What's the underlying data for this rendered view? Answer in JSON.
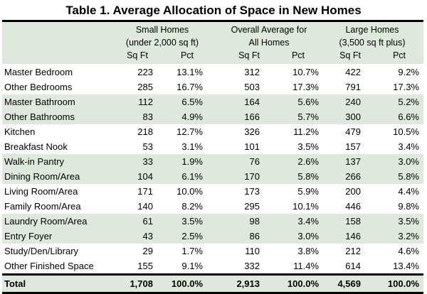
{
  "title": "Table 1.  Average Allocation of  Space in New Homes",
  "groups": [
    {
      "line1": "Small Homes",
      "line2": "(under 2,000 sq ft)"
    },
    {
      "line1": "Overall Average  for",
      "line2": "All Homes"
    },
    {
      "line1": "Large Homes",
      "line2": "(3,500 sq ft plus)"
    }
  ],
  "subheaders": {
    "sqft": "Sq Ft",
    "pct": "Pct"
  },
  "rows": [
    {
      "label": "Master Bedroom",
      "s_sqft": "223",
      "s_pct": "13.1%",
      "o_sqft": "312",
      "o_pct": "10.7%",
      "l_sqft": "422",
      "l_pct": "9.2%"
    },
    {
      "label": "Other Bedrooms",
      "s_sqft": "285",
      "s_pct": "16.7%",
      "o_sqft": "503",
      "o_pct": "17.3%",
      "l_sqft": "791",
      "l_pct": "17.3%"
    },
    {
      "label": "Master Bathroom",
      "s_sqft": "112",
      "s_pct": "6.5%",
      "o_sqft": "164",
      "o_pct": "5.6%",
      "l_sqft": "240",
      "l_pct": "5.2%"
    },
    {
      "label": "Other Bathrooms",
      "s_sqft": "83",
      "s_pct": "4.9%",
      "o_sqft": "166",
      "o_pct": "5.7%",
      "l_sqft": "300",
      "l_pct": "6.6%"
    },
    {
      "label": "Kitchen",
      "s_sqft": "218",
      "s_pct": "12.7%",
      "o_sqft": "326",
      "o_pct": "11.2%",
      "l_sqft": "479",
      "l_pct": "10.5%"
    },
    {
      "label": "Breakfast Nook",
      "s_sqft": "53",
      "s_pct": "3.1%",
      "o_sqft": "101",
      "o_pct": "3.5%",
      "l_sqft": "157",
      "l_pct": "3.4%"
    },
    {
      "label": "Walk-in Pantry",
      "s_sqft": "33",
      "s_pct": "1.9%",
      "o_sqft": "76",
      "o_pct": "2.6%",
      "l_sqft": "137",
      "l_pct": "3.0%"
    },
    {
      "label": "Dining Room/Area",
      "s_sqft": "104",
      "s_pct": "6.1%",
      "o_sqft": "170",
      "o_pct": "5.8%",
      "l_sqft": "266",
      "l_pct": "5.8%"
    },
    {
      "label": "Living Room/Area",
      "s_sqft": "171",
      "s_pct": "10.0%",
      "o_sqft": "173",
      "o_pct": "5.9%",
      "l_sqft": "200",
      "l_pct": "4.4%"
    },
    {
      "label": "Family Room/Area",
      "s_sqft": "140",
      "s_pct": "8.2%",
      "o_sqft": "295",
      "o_pct": "10.1%",
      "l_sqft": "446",
      "l_pct": "9.8%"
    },
    {
      "label": "Laundry Room/Area",
      "s_sqft": "61",
      "s_pct": "3.5%",
      "o_sqft": "98",
      "o_pct": "3.4%",
      "l_sqft": "158",
      "l_pct": "3.5%"
    },
    {
      "label": "Entry Foyer",
      "s_sqft": "43",
      "s_pct": "2.5%",
      "o_sqft": "86",
      "o_pct": "3.0%",
      "l_sqft": "146",
      "l_pct": "3.2%"
    },
    {
      "label": "Study/Den/Library",
      "s_sqft": "29",
      "s_pct": "1.7%",
      "o_sqft": "110",
      "o_pct": "3.8%",
      "l_sqft": "212",
      "l_pct": "4.6%"
    },
    {
      "label": "Other Finished Space",
      "s_sqft": "155",
      "s_pct": "9.1%",
      "o_sqft": "332",
      "o_pct": "11.4%",
      "l_sqft": "614",
      "l_pct": "13.4%"
    }
  ],
  "total": {
    "label": "Total",
    "s_sqft": "1,708",
    "s_pct": "100.0%",
    "o_sqft": "2,913",
    "o_pct": "100.0%",
    "l_sqft": "4,569",
    "l_pct": "100.0%"
  }
}
